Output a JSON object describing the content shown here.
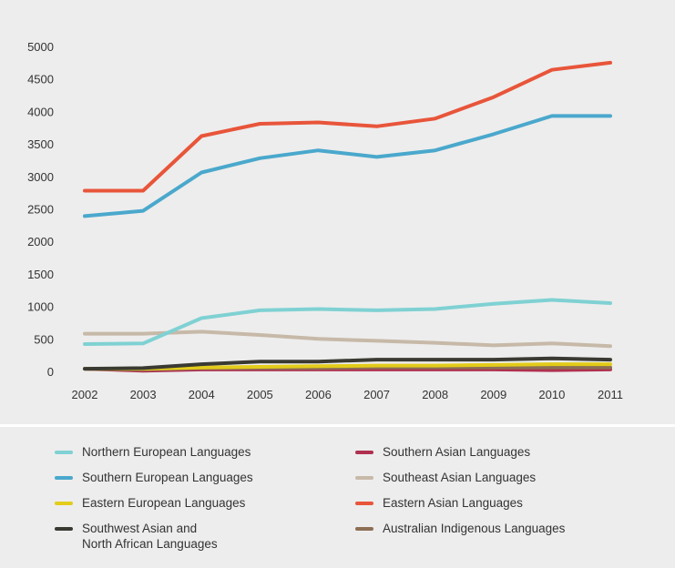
{
  "chart_data": {
    "type": "line",
    "title": "",
    "xlabel": "",
    "ylabel": "",
    "x": [
      "2002",
      "2003",
      "2004",
      "2005",
      "2006",
      "2007",
      "2008",
      "2009",
      "2010",
      "2011"
    ],
    "ylim": [
      0,
      5000
    ],
    "yticks": [
      0,
      500,
      1000,
      1500,
      2000,
      2500,
      3000,
      3500,
      4000,
      4500,
      5000
    ],
    "grid": false,
    "legend_position": "bottom",
    "series": [
      {
        "name": "Eastern Asian Languages",
        "color": "#e8553a",
        "values": [
          2780,
          2780,
          3620,
          3810,
          3830,
          3770,
          3890,
          4220,
          4640,
          4750
        ]
      },
      {
        "name": "Southern European Languages",
        "color": "#4aa8cc",
        "values": [
          2390,
          2470,
          3060,
          3280,
          3400,
          3300,
          3400,
          3650,
          3930,
          3930
        ]
      },
      {
        "name": "Northern European Languages",
        "color": "#7fd1d3",
        "values": [
          420,
          430,
          820,
          940,
          960,
          940,
          960,
          1040,
          1100,
          1050
        ]
      },
      {
        "name": "Southeast Asian Languages",
        "color": "#c7b9a8",
        "values": [
          580,
          580,
          610,
          560,
          500,
          470,
          440,
          400,
          430,
          390
        ]
      },
      {
        "name": "Southwest Asian and\nNorth African Languages",
        "color": "#3a3a33",
        "values": [
          40,
          50,
          110,
          150,
          150,
          180,
          180,
          180,
          200,
          180
        ]
      },
      {
        "name": "Eastern European Languages",
        "color": "#e3cc1a",
        "values": [
          40,
          40,
          60,
          70,
          80,
          90,
          90,
          100,
          110,
          110
        ]
      },
      {
        "name": "Australian Indigenous Languages",
        "color": "#8c6f55",
        "values": [
          40,
          30,
          50,
          50,
          50,
          60,
          60,
          60,
          60,
          60
        ]
      },
      {
        "name": "Southern Asian Languages",
        "color": "#b03050",
        "values": [
          40,
          10,
          30,
          30,
          30,
          30,
          30,
          30,
          20,
          30
        ]
      }
    ]
  },
  "legend": {
    "items": [
      {
        "label": "Northern European Languages",
        "color": "#7fd1d3"
      },
      {
        "label": "Southern Asian Languages",
        "color": "#b03050"
      },
      {
        "label": "Southern European Languages",
        "color": "#4aa8cc"
      },
      {
        "label": "Southeast Asian Languages",
        "color": "#c7b9a8"
      },
      {
        "label": "Eastern European Languages",
        "color": "#e3cc1a"
      },
      {
        "label": "Eastern Asian Languages",
        "color": "#e8553a"
      },
      {
        "label": "Southwest Asian and\nNorth African Languages",
        "color": "#3a3a33"
      },
      {
        "label": "Australian Indigenous Languages",
        "color": "#8c6f55"
      }
    ]
  }
}
